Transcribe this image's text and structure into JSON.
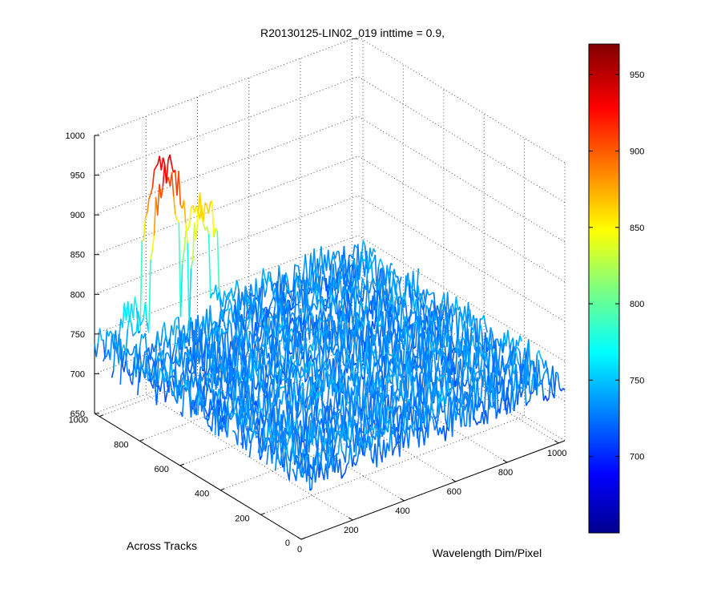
{
  "chart_data": {
    "type": "surface",
    "title": "R20130125-LIN02_019 inttime = 0.9,",
    "xlabel": "Wavelength Dim/Pixel",
    "ylabel": "Across Tracks",
    "zlabel": "",
    "xlim": [
      0,
      1024
    ],
    "ylim": [
      0,
      1024
    ],
    "zlim": [
      650,
      1000
    ],
    "x_ticks": [
      "0",
      "200",
      "400",
      "600",
      "800",
      "1000"
    ],
    "y_ticks": [
      "0",
      "200",
      "400",
      "600",
      "800",
      "1000"
    ],
    "z_ticks": [
      "650",
      "700",
      "750",
      "800",
      "850",
      "900",
      "950",
      "1000"
    ],
    "grid": true,
    "baseline_level": 730,
    "noise_amplitude": 25,
    "features": [
      {
        "name": "left-peak",
        "x_range": [
          180,
          330
        ],
        "y_range": [
          960,
          1024
        ],
        "peak_value": 955
      },
      {
        "name": "right-peak",
        "x_range": [
          340,
          450
        ],
        "y_range": [
          960,
          1024
        ],
        "peak_value": 895
      },
      {
        "name": "raised-shoulder",
        "x_range": [
          100,
          180
        ],
        "y_range": [
          960,
          1024
        ],
        "peak_value": 790
      }
    ],
    "colorbar": {
      "colormap": "jet",
      "range": [
        650,
        970
      ],
      "ticks": [
        "700",
        "750",
        "800",
        "850",
        "900",
        "950"
      ]
    }
  }
}
